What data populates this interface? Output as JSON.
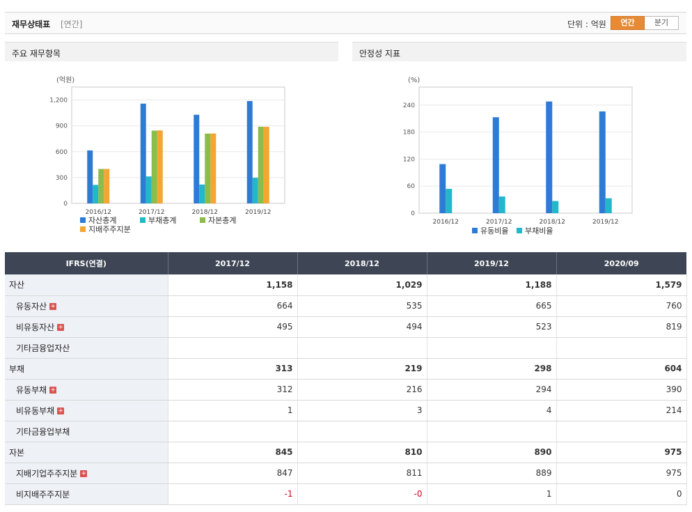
{
  "header": {
    "title": "재무상태표",
    "subtitle": "[연간]",
    "unit_label": "단위 : 억원",
    "buttons": [
      "연간",
      "분기"
    ]
  },
  "panels": {
    "left_title": "주요 재무항목",
    "right_title": "안정성 지표"
  },
  "chart_data": [
    {
      "type": "bar",
      "ylabel": "(억원)",
      "ylim": [
        0,
        1350
      ],
      "yticks": [
        0,
        300,
        600,
        900,
        1200
      ],
      "ytick_labels": [
        "0",
        "300",
        "600",
        "900",
        "1,200"
      ],
      "categories": [
        "2016/12",
        "2017/12",
        "2018/12",
        "2019/12"
      ],
      "series": [
        {
          "name": "자산총계",
          "color": "#2e7bd6",
          "values": [
            615,
            1158,
            1029,
            1188
          ]
        },
        {
          "name": "부채총계",
          "color": "#23b8c9",
          "values": [
            215,
            313,
            219,
            298
          ]
        },
        {
          "name": "자본총계",
          "color": "#8cbc4a",
          "values": [
            400,
            845,
            810,
            890
          ]
        },
        {
          "name": "지배주주지분",
          "color": "#f5a531",
          "values": [
            400,
            847,
            811,
            889
          ]
        }
      ],
      "grid": true,
      "legend": "bottom"
    },
    {
      "type": "bar",
      "ylabel": "(%)",
      "ylim": [
        0,
        280
      ],
      "yticks": [
        0,
        60,
        120,
        180,
        240
      ],
      "ytick_labels": [
        "0",
        "60",
        "120",
        "180",
        "240"
      ],
      "categories": [
        "2016/12",
        "2017/12",
        "2018/12",
        "2019/12"
      ],
      "series": [
        {
          "name": "유동비율",
          "color": "#2e7bd6",
          "values": [
            109,
            213,
            248,
            226
          ]
        },
        {
          "name": "부채비율",
          "color": "#23b8c9",
          "values": [
            54,
            37,
            27,
            33
          ]
        }
      ],
      "grid": true,
      "legend": "bottom"
    }
  ],
  "table": {
    "columns": [
      "IFRS(연결)",
      "2017/12",
      "2018/12",
      "2019/12",
      "2020/09"
    ],
    "rows": [
      {
        "label": "자산",
        "values": [
          "1,158",
          "1,029",
          "1,188",
          "1,579"
        ],
        "bold": true,
        "sub": false,
        "plus": false
      },
      {
        "label": "유동자산",
        "values": [
          "664",
          "535",
          "665",
          "760"
        ],
        "bold": false,
        "sub": true,
        "plus": true
      },
      {
        "label": "비유동자산",
        "values": [
          "495",
          "494",
          "523",
          "819"
        ],
        "bold": false,
        "sub": true,
        "plus": true
      },
      {
        "label": "기타금융업자산",
        "values": [
          "",
          "",
          "",
          ""
        ],
        "bold": false,
        "sub": true,
        "plus": false
      },
      {
        "label": "부채",
        "values": [
          "313",
          "219",
          "298",
          "604"
        ],
        "bold": true,
        "sub": false,
        "plus": false
      },
      {
        "label": "유동부채",
        "values": [
          "312",
          "216",
          "294",
          "390"
        ],
        "bold": false,
        "sub": true,
        "plus": true
      },
      {
        "label": "비유동부채",
        "values": [
          "1",
          "3",
          "4",
          "214"
        ],
        "bold": false,
        "sub": true,
        "plus": true
      },
      {
        "label": "기타금융업부채",
        "values": [
          "",
          "",
          "",
          ""
        ],
        "bold": false,
        "sub": true,
        "plus": false
      },
      {
        "label": "자본",
        "values": [
          "845",
          "810",
          "890",
          "975"
        ],
        "bold": true,
        "sub": false,
        "plus": false
      },
      {
        "label": "지배기업주주지분",
        "values": [
          "847",
          "811",
          "889",
          "975"
        ],
        "bold": false,
        "sub": true,
        "plus": true
      },
      {
        "label": "비지배주주지분",
        "values": [
          "-1",
          "-0",
          "1",
          "0"
        ],
        "bold": false,
        "sub": true,
        "plus": false
      }
    ]
  }
}
